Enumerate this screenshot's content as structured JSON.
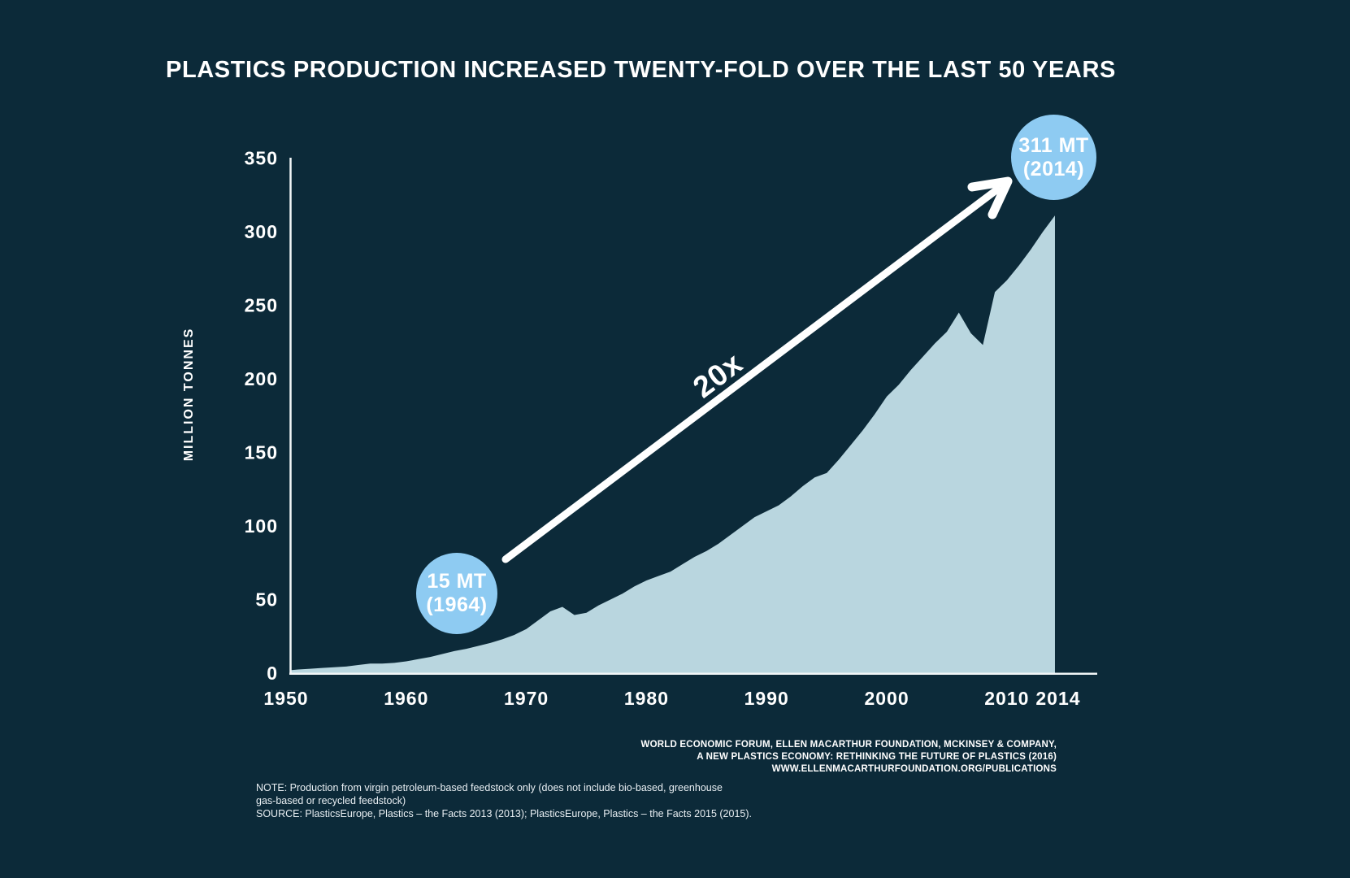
{
  "title": "PLASTICS PRODUCTION INCREASED TWENTY-FOLD OVER THE LAST 50 YEARS",
  "colors": {
    "background": "#0c2a39",
    "area": "#b9d6df",
    "callout_circle": "#8ecbf2",
    "text": "#ffffff"
  },
  "chart_data": {
    "type": "area",
    "title": "PLASTICS PRODUCTION INCREASED TWENTY-FOLD OVER THE LAST 50 YEARS",
    "xlabel": "",
    "ylabel": "MILLION TONNES",
    "ylim": [
      0,
      350
    ],
    "xlim": [
      1950,
      2014
    ],
    "grid": false,
    "legend": "none",
    "yticks": [
      0,
      50,
      100,
      150,
      200,
      250,
      300,
      350
    ],
    "xticks": [
      1950,
      1960,
      1970,
      1980,
      1990,
      2000,
      2010,
      2014
    ],
    "x": [
      1950,
      1951,
      1952,
      1953,
      1954,
      1955,
      1956,
      1957,
      1958,
      1959,
      1960,
      1961,
      1962,
      1963,
      1964,
      1965,
      1966,
      1967,
      1968,
      1969,
      1970,
      1971,
      1972,
      1973,
      1974,
      1975,
      1976,
      1977,
      1978,
      1979,
      1980,
      1981,
      1982,
      1983,
      1984,
      1985,
      1986,
      1987,
      1988,
      1989,
      1990,
      1991,
      1992,
      1993,
      1994,
      1995,
      1996,
      1997,
      1998,
      1999,
      2000,
      2001,
      2002,
      2003,
      2004,
      2005,
      2006,
      2007,
      2008,
      2009,
      2010,
      2011,
      2012,
      2013,
      2014
    ],
    "values": [
      2,
      2.5,
      3,
      3.5,
      4,
      4.5,
      5.5,
      6.5,
      6.5,
      7,
      8,
      9.5,
      11,
      13,
      15,
      16.5,
      18.5,
      20.5,
      23,
      26,
      30,
      36,
      42,
      45,
      39.5,
      41,
      46,
      50,
      54,
      59,
      63,
      66,
      69,
      74,
      79,
      83,
      88,
      94,
      100,
      106,
      110,
      114,
      120,
      127,
      133,
      136,
      145,
      155,
      165,
      176,
      188,
      196,
      206,
      215,
      224,
      232,
      245,
      231,
      223,
      259,
      267,
      277,
      288,
      300,
      311
    ],
    "annotations": {
      "start_callout": {
        "line1": "15 MT",
        "line2": "(1964)",
        "year": 1964,
        "value": 15
      },
      "end_callout": {
        "line1": "311 MT",
        "line2": "(2014)",
        "year": 2014,
        "value": 311
      },
      "arrow_label": "20x"
    }
  },
  "footnote": {
    "line1": "NOTE: Production from virgin petroleum-based feedstock only (does not include bio-based, greenhouse",
    "line2": "gas-based or recycled feedstock)",
    "line3": "SOURCE: PlasticsEurope, Plastics – the Facts 2013 (2013); PlasticsEurope, Plastics – the Facts 2015 (2015)."
  },
  "attribution": {
    "line1": "WORLD ECONOMIC FORUM, ELLEN MACARTHUR FOUNDATION, MCKINSEY & COMPANY,",
    "line2": "A NEW PLASTICS ECONOMY: RETHINKING THE FUTURE OF PLASTICS (2016)",
    "line3": "WWW.ELLENMACARTHURFOUNDATION.ORG/PUBLICATIONS"
  }
}
